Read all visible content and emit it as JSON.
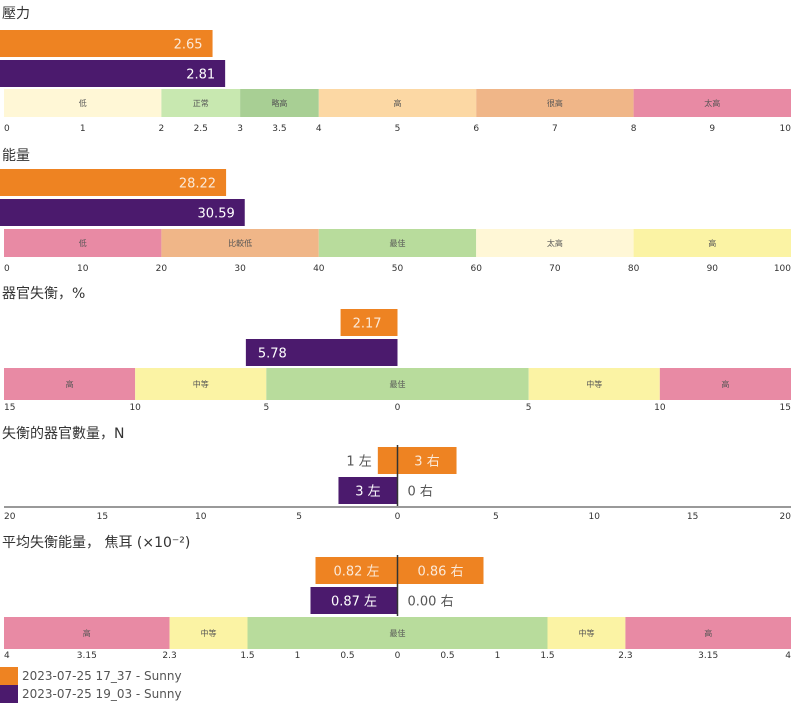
{
  "colors": {
    "series1": "#ee8322",
    "series2": "#4b1a6d",
    "zone_low": "#fff7d6",
    "zone_normal": "#c8e8b0",
    "zone_slight": "#a8cf94",
    "zone_high": "#fcd8a4",
    "zone_veryhigh": "#f0b688",
    "zone_toohigh": "#e88aa4",
    "zone_best": "#b8dc9c",
    "zone_mid": "#fbf3a4"
  },
  "legend": [
    {
      "label": "2023-07-25 17_37 - Sunny",
      "color": "#ee8322"
    },
    {
      "label": "2023-07-25 19_03 - Sunny",
      "color": "#4b1a6d"
    }
  ],
  "chart_data": [
    {
      "type": "bar",
      "title": "壓力",
      "axis": "linear",
      "xlim": [
        0,
        10
      ],
      "ticks": [
        {
          "v": 0,
          "t": "0"
        },
        {
          "v": 1,
          "t": "1"
        },
        {
          "v": 2,
          "t": "2"
        },
        {
          "v": 2.5,
          "t": "2.5"
        },
        {
          "v": 3,
          "t": "3"
        },
        {
          "v": 3.5,
          "t": "3.5"
        },
        {
          "v": 4,
          "t": "4"
        },
        {
          "v": 5,
          "t": "5"
        },
        {
          "v": 6,
          "t": "6"
        },
        {
          "v": 7,
          "t": "7"
        },
        {
          "v": 8,
          "t": "8"
        },
        {
          "v": 9,
          "t": "9"
        },
        {
          "v": 10,
          "t": "10"
        }
      ],
      "zones": [
        {
          "from": 0,
          "to": 2,
          "label": "低",
          "color": "#fff7d6"
        },
        {
          "from": 2,
          "to": 3,
          "label": "正常",
          "color": "#c8e8b0"
        },
        {
          "from": 3,
          "to": 4,
          "label": "略高",
          "color": "#a8cf94"
        },
        {
          "from": 4,
          "to": 6,
          "label": "高",
          "color": "#fcd8a4"
        },
        {
          "from": 6,
          "to": 8,
          "label": "很高",
          "color": "#f0b688"
        },
        {
          "from": 8,
          "to": 10,
          "label": "太高",
          "color": "#e88aa4"
        }
      ],
      "series": [
        {
          "value": 2.65,
          "label": "2.65"
        },
        {
          "value": 2.81,
          "label": "2.81"
        }
      ]
    },
    {
      "type": "bar",
      "title": "能量",
      "axis": "linear",
      "xlim": [
        0,
        100
      ],
      "ticks": [
        {
          "v": 0,
          "t": "0"
        },
        {
          "v": 10,
          "t": "10"
        },
        {
          "v": 20,
          "t": "20"
        },
        {
          "v": 30,
          "t": "30"
        },
        {
          "v": 40,
          "t": "40"
        },
        {
          "v": 50,
          "t": "50"
        },
        {
          "v": 60,
          "t": "60"
        },
        {
          "v": 70,
          "t": "70"
        },
        {
          "v": 80,
          "t": "80"
        },
        {
          "v": 90,
          "t": "90"
        },
        {
          "v": 100,
          "t": "100"
        }
      ],
      "zones": [
        {
          "from": 0,
          "to": 20,
          "label": "低",
          "color": "#e88aa4"
        },
        {
          "from": 20,
          "to": 40,
          "label": "比較低",
          "color": "#f0b688"
        },
        {
          "from": 40,
          "to": 60,
          "label": "最佳",
          "color": "#b8dc9c"
        },
        {
          "from": 60,
          "to": 80,
          "label": "太高",
          "color": "#fff7d6"
        },
        {
          "from": 80,
          "to": 100,
          "label": "高",
          "color": "#fbf3a4"
        }
      ],
      "series": [
        {
          "value": 28.22,
          "label": "28.22"
        },
        {
          "value": 30.59,
          "label": "30.59"
        }
      ]
    },
    {
      "type": "bar",
      "title": "器官失衡，%",
      "axis": "diverging",
      "xlim": [
        -15,
        15
      ],
      "ticks": [
        {
          "v": -15,
          "t": "15"
        },
        {
          "v": -10,
          "t": "10"
        },
        {
          "v": -5,
          "t": "5"
        },
        {
          "v": 0,
          "t": "0"
        },
        {
          "v": 5,
          "t": "5"
        },
        {
          "v": 10,
          "t": "10"
        },
        {
          "v": 15,
          "t": "15"
        }
      ],
      "zones": [
        {
          "from": -15,
          "to": -10,
          "label": "高",
          "color": "#e88aa4"
        },
        {
          "from": -10,
          "to": -5,
          "label": "中等",
          "color": "#fbf3a4"
        },
        {
          "from": -5,
          "to": 5,
          "label": "最佳",
          "color": "#b8dc9c"
        },
        {
          "from": 5,
          "to": 10,
          "label": "中等",
          "color": "#fbf3a4"
        },
        {
          "from": 10,
          "to": 15,
          "label": "高",
          "color": "#e88aa4"
        }
      ],
      "series": [
        {
          "value": -2.17,
          "label": "2.17"
        },
        {
          "value": -5.78,
          "label": "5.78"
        }
      ]
    },
    {
      "type": "bar",
      "title": "失衡的器官數量，N",
      "axis": "diverging",
      "xlim": [
        -20,
        20
      ],
      "ticks": [
        {
          "v": -20,
          "t": "20"
        },
        {
          "v": -15,
          "t": "15"
        },
        {
          "v": -10,
          "t": "10"
        },
        {
          "v": -5,
          "t": "5"
        },
        {
          "v": 0,
          "t": "0"
        },
        {
          "v": 5,
          "t": "5"
        },
        {
          "v": 10,
          "t": "10"
        },
        {
          "v": 15,
          "t": "15"
        },
        {
          "v": 20,
          "t": "20"
        }
      ],
      "zones": [],
      "series": [
        {
          "left": 1,
          "right": 3,
          "left_label": "1 左",
          "right_label": "3 右"
        },
        {
          "left": 3,
          "right": 0,
          "left_label": "3 左",
          "right_label": "0 右"
        }
      ]
    },
    {
      "type": "bar",
      "title": "平均失衡能量， 焦耳 (×10⁻²)",
      "axis": "piecewise",
      "xlim": [
        -4,
        4
      ],
      "ticks": [
        {
          "v": -4,
          "t": "4"
        },
        {
          "v": -3.15,
          "t": "3.15"
        },
        {
          "v": -2.3,
          "t": "2.3"
        },
        {
          "v": -1.5,
          "t": "1.5"
        },
        {
          "v": -1,
          "t": "1"
        },
        {
          "v": -0.5,
          "t": "0.5"
        },
        {
          "v": 0,
          "t": "0"
        },
        {
          "v": 0.5,
          "t": "0.5"
        },
        {
          "v": 1,
          "t": "1"
        },
        {
          "v": 1.5,
          "t": "1.5"
        },
        {
          "v": 2.3,
          "t": "2.3"
        },
        {
          "v": 3.15,
          "t": "3.15"
        },
        {
          "v": 4,
          "t": "4"
        }
      ],
      "zones": [
        {
          "from": -4,
          "to": -2.3,
          "label": "高",
          "color": "#e88aa4"
        },
        {
          "from": -2.3,
          "to": -1.5,
          "label": "中等",
          "color": "#fbf3a4"
        },
        {
          "from": -1.5,
          "to": 1.5,
          "label": "最佳",
          "color": "#b8dc9c"
        },
        {
          "from": 1.5,
          "to": 2.3,
          "label": "中等",
          "color": "#fbf3a4"
        },
        {
          "from": 2.3,
          "to": 4,
          "label": "高",
          "color": "#e88aa4"
        }
      ],
      "series": [
        {
          "left": 0.82,
          "right": 0.86,
          "left_label": "0.82 左",
          "right_label": "0.86 右"
        },
        {
          "left": 0.87,
          "right": 0.0,
          "left_label": "0.87 左",
          "right_label": "0.00 右"
        }
      ]
    }
  ]
}
